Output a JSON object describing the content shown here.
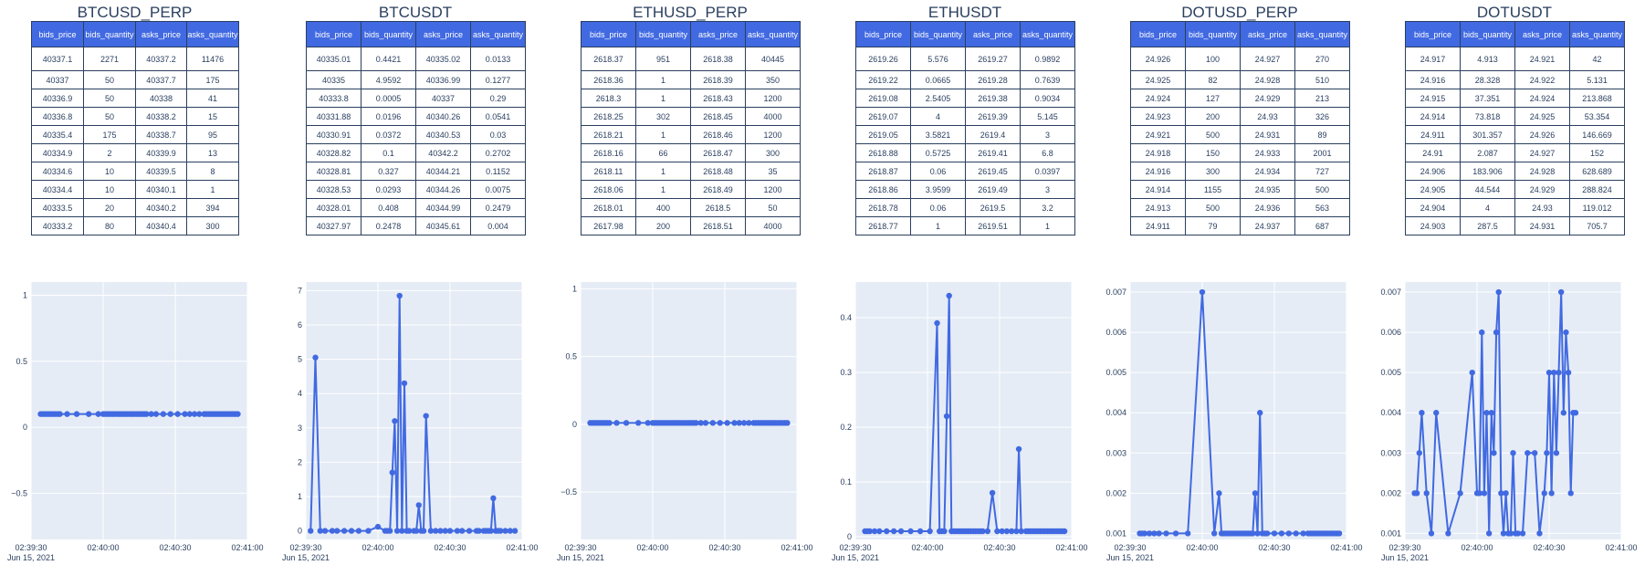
{
  "colors": {
    "line": "#4169e1",
    "plot_bg": "#e5ecf6",
    "grid": "#ffffff",
    "header_bg": "#4169e1",
    "text": "#2a3f5f"
  },
  "columns": [
    "bids_price",
    "bids_quantity",
    "asks_price",
    "asks_quantity"
  ],
  "date_label": "Jun 15, 2021",
  "x_ticks": [
    "02:39:30",
    "02:40:00",
    "02:40:30",
    "02:41:00"
  ],
  "markets": [
    {
      "name": "BTCUSD_PERP",
      "rows": [
        [
          "40337.1",
          "2271",
          "40337.2",
          "11476"
        ],
        [
          "40337",
          "50",
          "40337.7",
          "175"
        ],
        [
          "40336.9",
          "50",
          "40338",
          "41"
        ],
        [
          "40336.8",
          "50",
          "40338.2",
          "15"
        ],
        [
          "40335.4",
          "175",
          "40338.7",
          "95"
        ],
        [
          "40334.9",
          "2",
          "40339.9",
          "13"
        ],
        [
          "40334.6",
          "10",
          "40339.5",
          "8"
        ],
        [
          "40334.4",
          "10",
          "40340.1",
          "1"
        ],
        [
          "40333.5",
          "20",
          "40340.2",
          "394"
        ],
        [
          "40333.2",
          "80",
          "40340.4",
          "300"
        ]
      ]
    },
    {
      "name": "BTCUSDT",
      "rows": [
        [
          "40335.01",
          "0.4421",
          "40335.02",
          "0.0133"
        ],
        [
          "40335",
          "4.9592",
          "40336.99",
          "0.1277"
        ],
        [
          "40333.8",
          "0.0005",
          "40337",
          "0.29"
        ],
        [
          "40331.88",
          "0.0196",
          "40340.26",
          "0.0541"
        ],
        [
          "40330.91",
          "0.0372",
          "40340.53",
          "0.03"
        ],
        [
          "40328.82",
          "0.1",
          "40342.2",
          "0.2702"
        ],
        [
          "40328.81",
          "0.327",
          "40344.21",
          "0.1152"
        ],
        [
          "40328.53",
          "0.0293",
          "40344.26",
          "0.0075"
        ],
        [
          "40328.01",
          "0.408",
          "40344.99",
          "0.2479"
        ],
        [
          "40327.97",
          "0.2478",
          "40345.61",
          "0.004"
        ]
      ]
    },
    {
      "name": "ETHUSD_PERP",
      "rows": [
        [
          "2618.37",
          "951",
          "2618.38",
          "40445"
        ],
        [
          "2618.36",
          "1",
          "2618.39",
          "350"
        ],
        [
          "2618.3",
          "1",
          "2618.43",
          "1200"
        ],
        [
          "2618.25",
          "302",
          "2618.45",
          "4000"
        ],
        [
          "2618.21",
          "1",
          "2618.46",
          "1200"
        ],
        [
          "2618.16",
          "66",
          "2618.47",
          "300"
        ],
        [
          "2618.11",
          "1",
          "2618.48",
          "35"
        ],
        [
          "2618.06",
          "1",
          "2618.49",
          "1200"
        ],
        [
          "2618.01",
          "400",
          "2618.5",
          "50"
        ],
        [
          "2617.98",
          "200",
          "2618.51",
          "4000"
        ]
      ]
    },
    {
      "name": "ETHUSDT",
      "rows": [
        [
          "2619.26",
          "5.576",
          "2619.27",
          "0.9892"
        ],
        [
          "2619.22",
          "0.0665",
          "2619.28",
          "0.7639"
        ],
        [
          "2619.08",
          "2.5405",
          "2619.38",
          "0.9034"
        ],
        [
          "2619.07",
          "4",
          "2619.39",
          "5.145"
        ],
        [
          "2619.05",
          "3.5821",
          "2619.4",
          "3"
        ],
        [
          "2618.88",
          "0.5725",
          "2619.41",
          "6.8"
        ],
        [
          "2618.87",
          "0.06",
          "2619.45",
          "0.0397"
        ],
        [
          "2618.86",
          "3.9599",
          "2619.49",
          "3"
        ],
        [
          "2618.78",
          "0.06",
          "2619.5",
          "3.2"
        ],
        [
          "2618.77",
          "1",
          "2619.51",
          "1"
        ]
      ]
    },
    {
      "name": "DOTUSD_PERP",
      "rows": [
        [
          "24.926",
          "100",
          "24.927",
          "270"
        ],
        [
          "24.925",
          "82",
          "24.928",
          "510"
        ],
        [
          "24.924",
          "127",
          "24.929",
          "213"
        ],
        [
          "24.923",
          "200",
          "24.93",
          "326"
        ],
        [
          "24.921",
          "500",
          "24.931",
          "89"
        ],
        [
          "24.918",
          "150",
          "24.933",
          "2001"
        ],
        [
          "24.916",
          "300",
          "24.934",
          "727"
        ],
        [
          "24.914",
          "1155",
          "24.935",
          "500"
        ],
        [
          "24.913",
          "500",
          "24.936",
          "563"
        ],
        [
          "24.911",
          "79",
          "24.937",
          "687"
        ]
      ]
    },
    {
      "name": "DOTUSDT",
      "rows": [
        [
          "24.917",
          "4.913",
          "24.921",
          "42"
        ],
        [
          "24.916",
          "28.328",
          "24.922",
          "5.131"
        ],
        [
          "24.915",
          "37.351",
          "24.924",
          "213.868"
        ],
        [
          "24.914",
          "73.818",
          "24.925",
          "53.354"
        ],
        [
          "24.911",
          "301.357",
          "24.926",
          "146.669"
        ],
        [
          "24.91",
          "2.087",
          "24.927",
          "152"
        ],
        [
          "24.906",
          "183.906",
          "24.928",
          "628.689"
        ],
        [
          "24.905",
          "44.544",
          "24.929",
          "288.824"
        ],
        [
          "24.904",
          "4",
          "24.93",
          "119.012"
        ],
        [
          "24.903",
          "287.5",
          "24.931",
          "705.7"
        ]
      ]
    }
  ],
  "chart_data": [
    {
      "type": "line",
      "market": "BTCUSD_PERP",
      "xlim": [
        "02:39:30",
        "02:41:00"
      ],
      "ylim": [
        -0.85,
        1.1
      ],
      "yticks": [
        1,
        0.5,
        0,
        -0.5
      ],
      "ytick_labels": [
        "1",
        "0.5",
        "0",
        "−0.5"
      ],
      "x": [
        "02:39:34",
        "02:39:35",
        "02:39:36",
        "02:39:37",
        "02:39:38",
        "02:39:39",
        "02:39:40",
        "02:39:41",
        "02:39:42",
        "02:39:45",
        "02:39:49",
        "02:39:54",
        "02:39:58",
        "02:40:00",
        "02:40:01",
        "02:40:02",
        "02:40:03",
        "02:40:04",
        "02:40:05",
        "02:40:06",
        "02:40:07",
        "02:40:08",
        "02:40:09",
        "02:40:10",
        "02:40:11",
        "02:40:12",
        "02:40:13",
        "02:40:14",
        "02:40:15",
        "02:40:16",
        "02:40:17",
        "02:40:18",
        "02:40:20",
        "02:40:22",
        "02:40:25",
        "02:40:28",
        "02:40:31",
        "02:40:34",
        "02:40:36",
        "02:40:38",
        "02:40:40",
        "02:40:42",
        "02:40:43",
        "02:40:44",
        "02:40:45",
        "02:40:46",
        "02:40:47",
        "02:40:48",
        "02:40:49",
        "02:40:50",
        "02:40:51",
        "02:40:52",
        "02:40:53",
        "02:40:54",
        "02:40:55",
        "02:40:56"
      ],
      "y": [
        0.1,
        0.1,
        0.1,
        0.1,
        0.1,
        0.1,
        0.1,
        0.1,
        0.1,
        0.1,
        0.1,
        0.1,
        0.1,
        0.1,
        0.1,
        0.1,
        0.1,
        0.1,
        0.1,
        0.1,
        0.1,
        0.1,
        0.1,
        0.1,
        0.1,
        0.1,
        0.1,
        0.1,
        0.1,
        0.1,
        0.1,
        0.1,
        0.1,
        0.1,
        0.1,
        0.1,
        0.1,
        0.1,
        0.1,
        0.1,
        0.1,
        0.1,
        0.1,
        0.1,
        0.1,
        0.1,
        0.1,
        0.1,
        0.1,
        0.1,
        0.1,
        0.1,
        0.1,
        0.1,
        0.1,
        0.1
      ]
    },
    {
      "type": "line",
      "market": "BTCUSDT",
      "xlim": [
        "02:39:30",
        "02:41:00"
      ],
      "ylim": [
        -0.25,
        7.25
      ],
      "yticks": [
        7,
        6,
        5,
        4,
        3,
        2,
        1,
        0
      ],
      "ytick_labels": [
        "7",
        "6",
        "5",
        "4",
        "3",
        "2",
        "1",
        "0"
      ],
      "x": [
        "02:39:32",
        "02:39:34",
        "02:39:36",
        "02:39:38",
        "02:39:41",
        "02:39:43",
        "02:39:46",
        "02:39:49",
        "02:39:52",
        "02:39:56",
        "02:40:00",
        "02:40:03",
        "02:40:04",
        "02:40:05",
        "02:40:06",
        "02:40:07",
        "02:40:08",
        "02:40:09",
        "02:40:10",
        "02:40:11",
        "02:40:12",
        "02:40:13",
        "02:40:15",
        "02:40:16",
        "02:40:17",
        "02:40:18",
        "02:40:19",
        "02:40:20",
        "02:40:22",
        "02:40:24",
        "02:40:26",
        "02:40:28",
        "02:40:30",
        "02:40:33",
        "02:40:35",
        "02:40:38",
        "02:40:41",
        "02:40:42",
        "02:40:44",
        "02:40:45",
        "02:40:46",
        "02:40:47",
        "02:40:48",
        "02:40:49",
        "02:40:50",
        "02:40:51",
        "02:40:53",
        "02:40:55",
        "02:40:57"
      ],
      "y": [
        0,
        5.05,
        0,
        0,
        0,
        0,
        0,
        0,
        0,
        0,
        0.12,
        0,
        0,
        0,
        1.7,
        3.2,
        0,
        6.85,
        0,
        4.3,
        0,
        0,
        0,
        0,
        0.75,
        0,
        0,
        3.35,
        0,
        0,
        0,
        0,
        0,
        0,
        0,
        0,
        0,
        0,
        0,
        0,
        0,
        0,
        0.95,
        0,
        0,
        0,
        0,
        0,
        0
      ]
    },
    {
      "type": "line",
      "market": "ETHUSD_PERP",
      "xlim": [
        "02:39:30",
        "02:41:00"
      ],
      "ylim": [
        -0.85,
        1.05
      ],
      "yticks": [
        1,
        0.5,
        0,
        -0.5
      ],
      "ytick_labels": [
        "1",
        "0.5",
        "0",
        "−0.5"
      ],
      "x": [
        "02:39:34",
        "02:39:35",
        "02:39:36",
        "02:39:37",
        "02:39:38",
        "02:39:39",
        "02:39:40",
        "02:39:41",
        "02:39:42",
        "02:39:45",
        "02:39:49",
        "02:39:54",
        "02:39:58",
        "02:40:00",
        "02:40:01",
        "02:40:02",
        "02:40:03",
        "02:40:04",
        "02:40:05",
        "02:40:06",
        "02:40:07",
        "02:40:08",
        "02:40:09",
        "02:40:10",
        "02:40:11",
        "02:40:12",
        "02:40:13",
        "02:40:14",
        "02:40:15",
        "02:40:16",
        "02:40:17",
        "02:40:18",
        "02:40:20",
        "02:40:22",
        "02:40:25",
        "02:40:28",
        "02:40:31",
        "02:40:34",
        "02:40:36",
        "02:40:38",
        "02:40:40",
        "02:40:42",
        "02:40:43",
        "02:40:44",
        "02:40:45",
        "02:40:46",
        "02:40:47",
        "02:40:48",
        "02:40:49",
        "02:40:50",
        "02:40:51",
        "02:40:52",
        "02:40:53",
        "02:40:54",
        "02:40:55",
        "02:40:56"
      ],
      "y": [
        0.01,
        0.01,
        0.01,
        0.01,
        0.01,
        0.01,
        0.01,
        0.01,
        0.01,
        0.01,
        0.01,
        0.01,
        0.01,
        0.01,
        0.01,
        0.01,
        0.01,
        0.01,
        0.01,
        0.01,
        0.01,
        0.01,
        0.01,
        0.01,
        0.01,
        0.01,
        0.01,
        0.01,
        0.01,
        0.01,
        0.01,
        0.01,
        0.01,
        0.01,
        0.01,
        0.01,
        0.01,
        0.01,
        0.01,
        0.01,
        0.01,
        0.01,
        0.01,
        0.01,
        0.01,
        0.01,
        0.01,
        0.01,
        0.01,
        0.01,
        0.01,
        0.01,
        0.01,
        0.01,
        0.01,
        0.01
      ]
    },
    {
      "type": "line",
      "market": "ETHUSDT",
      "xlim": [
        "02:39:30",
        "02:41:00"
      ],
      "ylim": [
        -0.005,
        0.465
      ],
      "yticks": [
        0.4,
        0.3,
        0.2,
        0.1,
        0
      ],
      "ytick_labels": [
        "0.4",
        "0.3",
        "0.2",
        "0.1",
        "0"
      ],
      "x": [
        "02:39:34",
        "02:39:35",
        "02:39:36",
        "02:39:38",
        "02:39:40",
        "02:39:43",
        "02:39:46",
        "02:39:49",
        "02:39:53",
        "02:39:57",
        "02:40:01",
        "02:40:04",
        "02:40:05",
        "02:40:06",
        "02:40:07",
        "02:40:08",
        "02:40:09",
        "02:40:10",
        "02:40:11",
        "02:40:12",
        "02:40:13",
        "02:40:14",
        "02:40:15",
        "02:40:16",
        "02:40:17",
        "02:40:18",
        "02:40:19",
        "02:40:20",
        "02:40:21",
        "02:40:22",
        "02:40:23",
        "02:40:25",
        "02:40:27",
        "02:40:29",
        "02:40:31",
        "02:40:33",
        "02:40:35",
        "02:40:37",
        "02:40:38",
        "02:40:39",
        "02:40:41",
        "02:40:42",
        "02:40:43",
        "02:40:44",
        "02:40:45",
        "02:40:46",
        "02:40:47",
        "02:40:48",
        "02:40:49",
        "02:40:50",
        "02:40:51",
        "02:40:52",
        "02:40:53",
        "02:40:54",
        "02:40:55",
        "02:40:56",
        "02:40:57"
      ],
      "y": [
        0.01,
        0.01,
        0.01,
        0.01,
        0.01,
        0.01,
        0.01,
        0.01,
        0.01,
        0.01,
        0.01,
        0.39,
        0.01,
        0.01,
        0.01,
        0.22,
        0.44,
        0.01,
        0.01,
        0.01,
        0.01,
        0.01,
        0.01,
        0.01,
        0.01,
        0.01,
        0.01,
        0.01,
        0.01,
        0.01,
        0.01,
        0.01,
        0.08,
        0.01,
        0.01,
        0.01,
        0.01,
        0.01,
        0.16,
        0.01,
        0.01,
        0.01,
        0.01,
        0.01,
        0.01,
        0.01,
        0.01,
        0.01,
        0.01,
        0.01,
        0.01,
        0.01,
        0.01,
        0.01,
        0.01,
        0.01,
        0.01
      ]
    },
    {
      "type": "line",
      "market": "DOTUSD_PERP",
      "xlim": [
        "02:39:30",
        "02:41:00"
      ],
      "ylim": [
        0.00085,
        0.00725
      ],
      "yticks": [
        0.007,
        0.006,
        0.005,
        0.004,
        0.003,
        0.002,
        0.001
      ],
      "ytick_labels": [
        "0.007",
        "0.006",
        "0.005",
        "0.004",
        "0.003",
        "0.002",
        "0.001"
      ],
      "x": [
        "02:39:34",
        "02:39:35",
        "02:39:36",
        "02:39:38",
        "02:39:40",
        "02:39:42",
        "02:39:45",
        "02:39:49",
        "02:39:54",
        "02:40:00",
        "02:40:05",
        "02:40:07",
        "02:40:08",
        "02:40:09",
        "02:40:10",
        "02:40:11",
        "02:40:12",
        "02:40:13",
        "02:40:14",
        "02:40:15",
        "02:40:16",
        "02:40:17",
        "02:40:18",
        "02:40:19",
        "02:40:20",
        "02:40:21",
        "02:40:22",
        "02:40:23",
        "02:40:24",
        "02:40:25",
        "02:40:26",
        "02:40:27",
        "02:40:30",
        "02:40:33",
        "02:40:36",
        "02:40:39",
        "02:40:42",
        "02:40:44",
        "02:40:45",
        "02:40:46",
        "02:40:47",
        "02:40:48",
        "02:40:49",
        "02:40:50",
        "02:40:51",
        "02:40:52",
        "02:40:53",
        "02:40:54",
        "02:40:55",
        "02:40:56",
        "02:40:57"
      ],
      "y": [
        0.001,
        0.001,
        0.001,
        0.001,
        0.001,
        0.001,
        0.001,
        0.001,
        0.001,
        0.007,
        0.001,
        0.002,
        0.001,
        0.001,
        0.001,
        0.001,
        0.001,
        0.001,
        0.001,
        0.001,
        0.001,
        0.001,
        0.001,
        0.001,
        0.001,
        0.001,
        0.002,
        0.001,
        0.004,
        0.001,
        0.001,
        0.001,
        0.001,
        0.001,
        0.001,
        0.001,
        0.001,
        0.001,
        0.001,
        0.001,
        0.001,
        0.001,
        0.001,
        0.001,
        0.001,
        0.001,
        0.001,
        0.001,
        0.001,
        0.001,
        0.001
      ]
    },
    {
      "type": "line",
      "market": "DOTUSDT",
      "xlim": [
        "02:39:30",
        "02:41:00"
      ],
      "ylim": [
        0.00085,
        0.00725
      ],
      "yticks": [
        0.007,
        0.006,
        0.005,
        0.004,
        0.003,
        0.002,
        0.001
      ],
      "ytick_labels": [
        "0.007",
        "0.006",
        "0.005",
        "0.004",
        "0.003",
        "0.002",
        "0.001"
      ],
      "x": [
        "02:39:34",
        "02:39:35",
        "02:39:36",
        "02:39:37",
        "02:39:39",
        "02:39:41",
        "02:39:43",
        "02:39:48",
        "02:39:53",
        "02:39:58",
        "02:40:00",
        "02:40:01",
        "02:40:02",
        "02:40:03",
        "02:40:04",
        "02:40:05",
        "02:40:06",
        "02:40:07",
        "02:40:08",
        "02:40:09",
        "02:40:10",
        "02:40:11",
        "02:40:12",
        "02:40:13",
        "02:40:14",
        "02:40:15",
        "02:40:16",
        "02:40:17",
        "02:40:19",
        "02:40:21",
        "02:40:24",
        "02:40:26",
        "02:40:28",
        "02:40:29",
        "02:40:30",
        "02:40:31",
        "02:40:32",
        "02:40:33",
        "02:40:34",
        "02:40:35",
        "02:40:36",
        "02:40:37",
        "02:40:38",
        "02:40:39",
        "02:40:40",
        "02:40:41"
      ],
      "y": [
        0.002,
        0.002,
        0.003,
        0.004,
        0.002,
        0.001,
        0.004,
        0.001,
        0.002,
        0.005,
        0.002,
        0.002,
        0.006,
        0.002,
        0.004,
        0.001,
        0.004,
        0.003,
        0.006,
        0.007,
        0.002,
        0.001,
        0.002,
        0.001,
        0.001,
        0.003,
        0.001,
        0.001,
        0.001,
        0.003,
        0.003,
        0.001,
        0.002,
        0.003,
        0.005,
        0.002,
        0.005,
        0.003,
        0.005,
        0.007,
        0.004,
        0.006,
        0.005,
        0.002,
        0.004,
        0.004
      ]
    }
  ]
}
